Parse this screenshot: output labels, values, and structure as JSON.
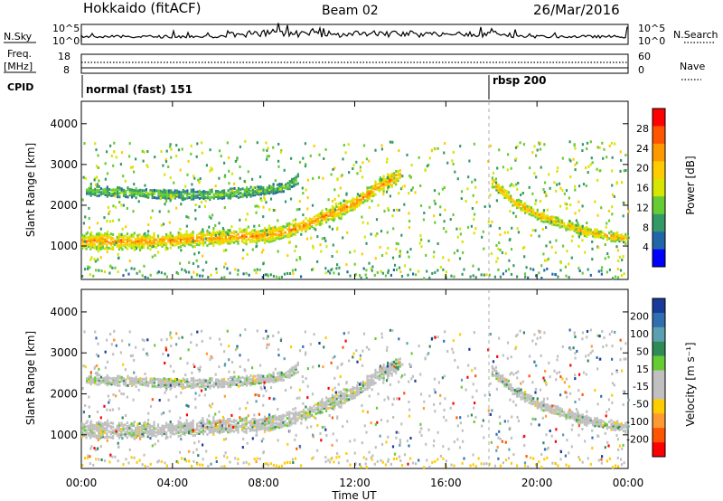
{
  "header": {
    "station": "Hokkaido (fitACF)",
    "beam": "Beam 02",
    "date": "26/Mar/2016"
  },
  "top_panels": {
    "nsky_label": "N.Sky",
    "nsearch_label": "N.Search",
    "nsky_ticks": [
      "10^5",
      "10^0"
    ],
    "freq_label_1": "Freq.",
    "freq_label_2": "[MHz]",
    "freq_ticks": [
      "18",
      "8"
    ],
    "nave_ticks": [
      "60",
      "0"
    ],
    "nave_label": "Nave",
    "cpid_label": "CPID",
    "cpid_segments": [
      {
        "label": "normal (fast) 151",
        "start_hour": 0
      },
      {
        "label": "rbsp 200",
        "start_hour": 18.0
      }
    ]
  },
  "axes": {
    "ylabel": "Slant Range [km]",
    "xlabel": "Time UT",
    "x_ticks": [
      "00:00",
      "04:00",
      "08:00",
      "12:00",
      "16:00",
      "20:00",
      "00:00"
    ],
    "y_ticks": [
      "1000",
      "2000",
      "3000",
      "4000"
    ],
    "xlim_hours": [
      0,
      24
    ],
    "ylim_km": [
      180,
      4550
    ]
  },
  "colorbars": {
    "power": {
      "label": "Power [dB]",
      "ticks": [
        "28",
        "24",
        "20",
        "16",
        "12",
        "8",
        "4"
      ],
      "colors": [
        "#ff0000",
        "#ff5500",
        "#ff9900",
        "#ffcc00",
        "#d6e600",
        "#66cc33",
        "#339966",
        "#2266aa",
        "#0000ff"
      ]
    },
    "velocity": {
      "label": "Velocity [m s⁻¹]",
      "ticks": [
        "200",
        "100",
        "50",
        "15",
        "-15",
        "-50",
        "-100",
        "-200"
      ],
      "colors": [
        "#1a3a99",
        "#2f6fb0",
        "#5aa0b0",
        "#2e8b57",
        "#66cc33",
        "#c0c0c0",
        "#c0c0c0",
        "#ffcc00",
        "#ff9933",
        "#ff5500",
        "#ff0000"
      ]
    }
  },
  "chart_data": {
    "type": "heatmap",
    "title": "Hokkaido (fitACF)",
    "xlabel": "Time UT",
    "ylabel": "Slant Range [km]",
    "xlim": [
      0,
      24
    ],
    "ylim": [
      180,
      4550
    ],
    "grid": false,
    "echo_bands": [
      {
        "name": "lower band",
        "t": [
          0,
          2,
          4,
          6,
          8,
          9,
          10,
          11,
          12,
          13,
          14
        ],
        "range_km": [
          1150,
          1150,
          1180,
          1250,
          1300,
          1400,
          1600,
          1850,
          2100,
          2500,
          2800
        ],
        "power_db": 24
      },
      {
        "name": "upper band",
        "t": [
          0.2,
          2,
          4,
          6,
          8,
          9,
          9.5
        ],
        "range_km": [
          2400,
          2350,
          2300,
          2300,
          2400,
          2500,
          2700
        ],
        "power_db": 12
      },
      {
        "name": "evening band",
        "t": [
          18,
          19,
          20,
          21,
          22,
          23,
          24
        ],
        "range_km": [
          2600,
          2100,
          1800,
          1600,
          1400,
          1300,
          1200
        ],
        "power_db": 22
      }
    ],
    "velocity_m_s": {
      "dominant": "-15 to 15",
      "range": [
        -200,
        200
      ]
    },
    "power_db_range": [
      0,
      30
    ]
  }
}
